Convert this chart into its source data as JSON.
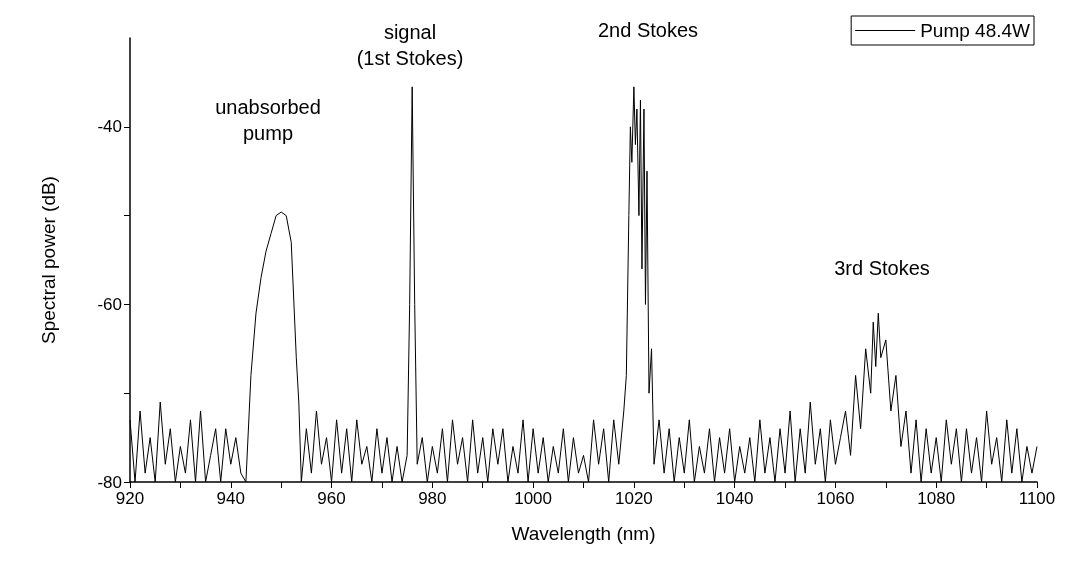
{
  "chart_data": {
    "type": "line",
    "xlabel": "Wavelength (nm)",
    "ylabel": "Spectral power (dB)",
    "xlim": [
      920,
      1100
    ],
    "ylim": [
      -80,
      -30
    ],
    "xticks": [
      920,
      {
        "value": 930,
        "label": null
      },
      940,
      {
        "value": 950,
        "label": null
      },
      960,
      {
        "value": 970,
        "label": null
      },
      980,
      {
        "value": 990,
        "label": null
      },
      1000,
      {
        "value": 1010,
        "label": null
      },
      1020,
      {
        "value": 1030,
        "label": null
      },
      1040,
      {
        "value": 1050,
        "label": null
      },
      1060,
      {
        "value": 1070,
        "label": null
      },
      1080,
      {
        "value": 1090,
        "label": null
      },
      1100
    ],
    "yticks": [
      -80,
      {
        "value": -70,
        "label": null
      },
      -60,
      {
        "value": -50,
        "label": null
      },
      -40
    ],
    "grid": false,
    "legend": "top right",
    "marker": "none",
    "line_style": "solid",
    "annotations": [
      "unabsorbed\npump",
      "signal\n(1st Stokes)",
      "2nd Stokes",
      "3rd Stokes"
    ],
    "series": [
      {
        "name": "Pump 48.4W",
        "color": "#000000",
        "x": [
          920,
          921,
          922,
          923,
          924,
          925,
          926,
          927,
          928,
          929,
          930,
          931,
          932,
          933,
          934,
          935,
          936,
          937,
          938,
          939,
          940,
          941,
          942,
          943,
          944,
          945,
          946,
          947,
          948,
          949,
          950,
          951,
          952,
          953,
          953.5,
          954,
          955,
          956,
          957,
          958,
          959,
          960,
          961,
          962,
          963,
          964,
          965,
          966,
          967,
          968,
          969,
          970,
          971,
          972,
          973,
          974,
          975,
          975.5,
          976,
          976.5,
          977,
          978,
          979,
          980,
          981,
          982,
          983,
          984,
          985,
          986,
          987,
          988,
          989,
          990,
          991,
          992,
          993,
          994,
          995,
          996,
          997,
          998,
          999,
          1000,
          1001,
          1002,
          1003,
          1004,
          1005,
          1006,
          1007,
          1008,
          1009,
          1010,
          1011,
          1012,
          1013,
          1014,
          1015,
          1016,
          1017,
          1018,
          1018.5,
          1019,
          1019.3,
          1019.6,
          1020,
          1020.3,
          1020.6,
          1021,
          1021.3,
          1021.6,
          1022,
          1022.3,
          1022.6,
          1023,
          1023.5,
          1024,
          1025,
          1026,
          1027,
          1028,
          1029,
          1030,
          1031,
          1032,
          1033,
          1034,
          1035,
          1036,
          1037,
          1038,
          1039,
          1040,
          1041,
          1042,
          1043,
          1044,
          1045,
          1046,
          1047,
          1048,
          1049,
          1050,
          1051,
          1052,
          1053,
          1054,
          1055,
          1056,
          1057,
          1058,
          1059,
          1060,
          1061,
          1062,
          1063,
          1064,
          1065,
          1066,
          1067,
          1067.5,
          1068,
          1068.5,
          1069,
          1070,
          1071,
          1072,
          1073,
          1074,
          1075,
          1076,
          1077,
          1078,
          1079,
          1080,
          1081,
          1082,
          1083,
          1084,
          1085,
          1086,
          1087,
          1088,
          1089,
          1090,
          1091,
          1092,
          1093,
          1094,
          1095,
          1096,
          1097,
          1098,
          1099,
          1100
        ],
        "values": [
          -73,
          -80,
          -72,
          -79,
          -75,
          -80,
          -71,
          -78,
          -74,
          -80,
          -76,
          -79,
          -73,
          -80,
          -72,
          -80,
          -77,
          -74,
          -80,
          -74,
          -78,
          -75,
          -79,
          -80,
          -68,
          -61,
          -57,
          -54,
          -52,
          -50,
          -49.6,
          -50,
          -53,
          -66,
          -71,
          -80,
          -74,
          -79,
          -72,
          -78,
          -75,
          -80,
          -73,
          -79,
          -74,
          -80,
          -73,
          -78,
          -76,
          -80,
          -74,
          -79,
          -75,
          -80,
          -76,
          -80,
          -77,
          -60,
          -35.5,
          -60,
          -78,
          -75,
          -80,
          -76,
          -79,
          -74,
          -80,
          -73,
          -78,
          -75,
          -80,
          -73,
          -79,
          -75,
          -80,
          -74,
          -78,
          -74,
          -80,
          -76,
          -79,
          -73,
          -80,
          -74,
          -79,
          -75,
          -80,
          -76,
          -79,
          -74,
          -80,
          -75,
          -79,
          -77,
          -80,
          -73,
          -78,
          -74,
          -80,
          -73,
          -78,
          -72,
          -68,
          -50,
          -40,
          -44,
          -35.5,
          -42,
          -38,
          -50,
          -37,
          -56,
          -38,
          -60,
          -45,
          -70,
          -65,
          -78,
          -73,
          -79,
          -74,
          -80,
          -75,
          -79,
          -73,
          -80,
          -76,
          -79,
          -74,
          -80,
          -75,
          -79,
          -74,
          -80,
          -76,
          -79,
          -75,
          -80,
          -73,
          -79,
          -75,
          -80,
          -74,
          -79,
          -72,
          -80,
          -74,
          -79,
          -71,
          -78,
          -74,
          -80,
          -73,
          -78,
          -75,
          -72,
          -77,
          -68,
          -74,
          -65,
          -70,
          -62,
          -67,
          -61,
          -66,
          -64,
          -72,
          -68,
          -76,
          -72,
          -79,
          -73,
          -80,
          -74,
          -79,
          -75,
          -80,
          -73,
          -78,
          -74,
          -80,
          -74,
          -79,
          -75,
          -80,
          -72,
          -78,
          -75,
          -80,
          -73,
          -79,
          -74,
          -80,
          -76,
          -79,
          -76
        ]
      }
    ]
  }
}
